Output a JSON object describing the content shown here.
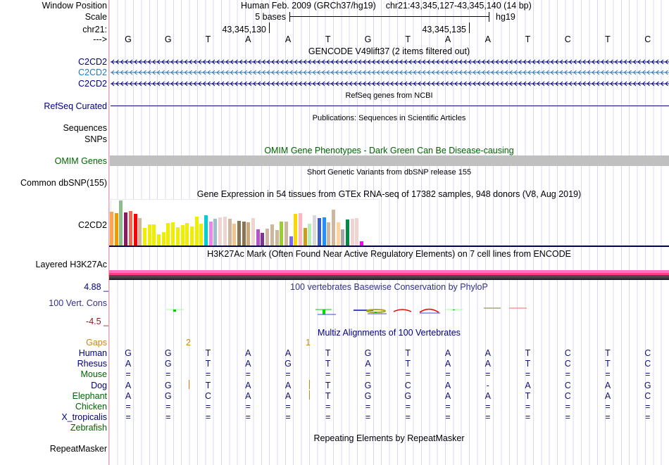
{
  "header": {
    "window_position_label": "Window Position",
    "assembly": "Human Feb. 2009 (GRCh37/hg19)",
    "position": "chr21:43,345,127-43,345,140 (14 bp)",
    "scale_label": "Scale",
    "scale_text": "5 bases",
    "scale_db": "hg19",
    "chrom_label": "chr21:",
    "tick1": "43,345,130",
    "tick2": "43,345,135",
    "strand_label": "--->",
    "sequence": [
      "G",
      "G",
      "T",
      "A",
      "A",
      "T",
      "G",
      "T",
      "A",
      "A",
      "T",
      "C",
      "T",
      "C"
    ]
  },
  "tracks": {
    "gencode_title": "GENCODE V49lift37 (2 items filtered out)",
    "gencode_items": [
      "C2CD2",
      "C2CD2",
      "C2CD2"
    ],
    "refseq_title": "RefSeq genes from NCBI",
    "refseq_label": "RefSeq Curated",
    "pubs_title": "Publications: Sequences in Scientific Articles",
    "pubs_label1": "Sequences",
    "pubs_label2": "SNPs",
    "omim_title": "OMIM Gene Phenotypes - Dark Green Can Be Disease-causing",
    "omim_label": "OMIM Genes",
    "dbsnp_title": "Short Genetic Variants from dbSNP release 155",
    "dbsnp_label": "Common dbSNP(155)",
    "gtex_title": "Gene Expression in 54 tissues from GTEx RNA-seq of 17382 samples, 948 donors (V8, Aug 2019)",
    "gtex_label": "C2CD2",
    "h3k_title": "H3K27Ac Mark (Often Found Near Active Regulatory Elements) on 7 cell lines from ENCODE",
    "h3k_label": "Layered H3K27Ac",
    "phylop_max": "4.88 _",
    "phylop_title": "100 vertebrates Basewise Conservation by PhyloP",
    "phylop_label": "100 Vert. Cons",
    "phylop_min": "-4.5 _",
    "multiz_title": "Multiz Alignments of 100 Vertebrates",
    "gaps_label": "Gaps",
    "gap_marks": [
      "2",
      "1"
    ],
    "rmsk_title": "Repeating Elements by RepeatMasker",
    "rmsk_label": "RepeatMasker"
  },
  "alignment": [
    {
      "species": "Human",
      "color": "#000080",
      "seq": "GGTAATGTAATCTC"
    },
    {
      "species": "Rhesus",
      "color": "#000080",
      "seq": "aGTAgTaTAATCTC"
    },
    {
      "species": "Mouse",
      "color": "#006400",
      "seq": "=============="
    },
    {
      "species": "Dog",
      "color": "#000080",
      "seq": "aGTAATGcA-aCag"
    },
    {
      "species": "Elephant",
      "color": "#006400",
      "seq": "aGcAATGgAATCaC"
    },
    {
      "species": "Chicken",
      "color": "#006400",
      "seq": "=============="
    },
    {
      "species": "X_tropicalis",
      "color": "#000080",
      "seq": "=============="
    },
    {
      "species": "Zebrafish",
      "color": "#006400",
      "seq": ""
    }
  ],
  "gtex_expression": [
    48,
    46,
    64,
    47,
    49,
    45,
    39,
    25,
    30,
    30,
    16,
    19,
    32,
    33,
    26,
    29,
    32,
    27,
    41,
    31,
    43,
    34,
    38,
    40,
    41,
    38,
    31,
    35,
    34,
    33,
    39,
    23,
    18,
    24,
    30,
    22,
    34,
    34,
    13,
    45,
    46,
    25,
    31,
    43,
    39,
    40,
    33,
    51,
    33,
    23,
    37,
    38,
    39,
    6
  ],
  "gtex_colors": [
    "#FFA54F",
    "#EE9A00",
    "#8FBC8F",
    "#8B1C62",
    "#EE6A50",
    "#FF0000",
    "#CDB79E",
    "#EEEE00",
    "#EEEE00",
    "#EEEE00",
    "#EEEE00",
    "#EEEE00",
    "#EEEE00",
    "#EEEE00",
    "#EEEE00",
    "#EEEE00",
    "#EEEE00",
    "#EEEE00",
    "#EEEE00",
    "#EEEE00",
    "#00CED1",
    "#EE82EE",
    "#9AC0CD",
    "#EED5D2",
    "#EED5D2",
    "#CDB79E",
    "#EEC591",
    "#8B7355",
    "#8B7355",
    "#CDAA7D",
    "#EED5D2",
    "#B452CD",
    "#7A378B",
    "#CDB79E",
    "#CDB79E",
    "#CDB79E",
    "#9ACD32",
    "#CDB79E",
    "#7B68EE",
    "#FFD700",
    "#FFB6C1",
    "#CD9B1D",
    "#B4EEB4",
    "#D9D9D9",
    "#3A5FCD",
    "#1E90FF",
    "#CDB79E",
    "#CDB79E",
    "#FFD39B",
    "#A6A6A6",
    "#008B45",
    "#EED5D2",
    "#EED5D2",
    "#FF00FF"
  ],
  "colors": {
    "navy": "#000080",
    "gene_light": "#2a7ab8",
    "omim_green": "#006400",
    "gaps": "#d4820a",
    "omim_bar": "#c0c0c0"
  }
}
